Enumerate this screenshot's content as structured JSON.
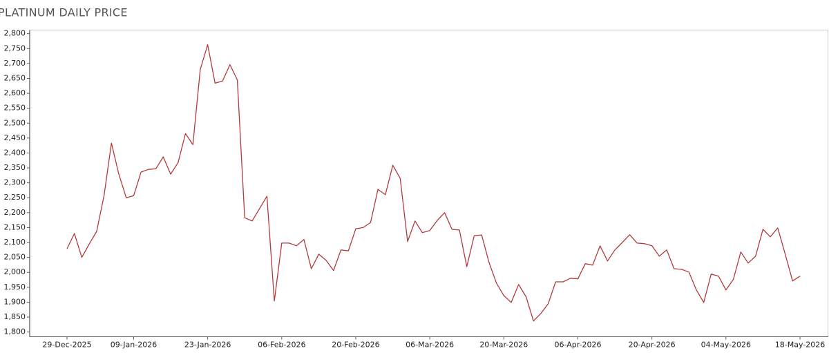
{
  "chart_data": {
    "type": "line",
    "title": "PLATINUM DAILY PRICE",
    "color": "#b23a3a",
    "categories": [
      "29-Dec-2025",
      null,
      null,
      null,
      null,
      null,
      null,
      null,
      null,
      "09-Jan-2026",
      null,
      null,
      null,
      null,
      null,
      null,
      null,
      null,
      null,
      "23-Jan-2026",
      null,
      null,
      null,
      null,
      null,
      null,
      null,
      null,
      null,
      "06-Feb-2026",
      null,
      null,
      null,
      null,
      null,
      null,
      null,
      null,
      null,
      "20-Feb-2026",
      null,
      null,
      null,
      null,
      null,
      null,
      null,
      null,
      null,
      "06-Mar-2026",
      null,
      null,
      null,
      null,
      null,
      null,
      null,
      null,
      null,
      "20-Mar-2026",
      null,
      null,
      null,
      null,
      null,
      null,
      null,
      null,
      null,
      "06-Apr-2026",
      null,
      null,
      null,
      null,
      null,
      null,
      null,
      null,
      null,
      "20-Apr-2026",
      null,
      null,
      null,
      null,
      null,
      null,
      null,
      null,
      null,
      "04-May-2026",
      null,
      null,
      null,
      null,
      null,
      null,
      null,
      null,
      null,
      "18-May-2026"
    ],
    "values": [
      2079,
      2130,
      2050,
      2095,
      2137,
      2257,
      2433,
      2329,
      2250,
      2257,
      2336,
      2345,
      2347,
      2387,
      2329,
      2368,
      2465,
      2428,
      2680,
      2763,
      2634,
      2641,
      2696,
      2645,
      2183,
      2172,
      2213,
      2255,
      1904,
      2098,
      2098,
      2089,
      2110,
      2012,
      2061,
      2040,
      2006,
      2075,
      2072,
      2146,
      2150,
      2167,
      2278,
      2260,
      2359,
      2315,
      2103,
      2172,
      2133,
      2140,
      2174,
      2200,
      2144,
      2142,
      2019,
      2123,
      2125,
      2033,
      1964,
      1922,
      1899,
      1959,
      1918,
      1837,
      1862,
      1895,
      1968,
      1968,
      1980,
      1978,
      2029,
      2024,
      2089,
      2038,
      2075,
      2100,
      2126,
      2098,
      2096,
      2089,
      2054,
      2075,
      2012,
      2010,
      2001,
      1941,
      1899,
      1994,
      1987,
      1941,
      1976,
      2068,
      2031,
      2054,
      2144,
      2119,
      2149,
      2061,
      1971,
      1987
    ],
    "ylim": [
      1784,
      2812
    ],
    "yticks": [
      {
        "value": 1800,
        "label": "1,800"
      },
      {
        "value": 1850,
        "label": "1,850"
      },
      {
        "value": 1900,
        "label": "1,900"
      },
      {
        "value": 1950,
        "label": "1,950"
      },
      {
        "value": 2000,
        "label": "2,000"
      },
      {
        "value": 2050,
        "label": "2,050"
      },
      {
        "value": 2100,
        "label": "2,100"
      },
      {
        "value": 2150,
        "label": "2,150"
      },
      {
        "value": 2200,
        "label": "2,200"
      },
      {
        "value": 2250,
        "label": "2,250"
      },
      {
        "value": 2300,
        "label": "2,300"
      },
      {
        "value": 2350,
        "label": "2,350"
      },
      {
        "value": 2400,
        "label": "2,400"
      },
      {
        "value": 2450,
        "label": "2,450"
      },
      {
        "value": 2500,
        "label": "2,500"
      },
      {
        "value": 2550,
        "label": "2,550"
      },
      {
        "value": 2600,
        "label": "2,600"
      },
      {
        "value": 2650,
        "label": "2,650"
      },
      {
        "value": 2700,
        "label": "2,700"
      },
      {
        "value": 2750,
        "label": "2,750"
      },
      {
        "value": 2800,
        "label": "2,800"
      }
    ],
    "grid": false
  }
}
